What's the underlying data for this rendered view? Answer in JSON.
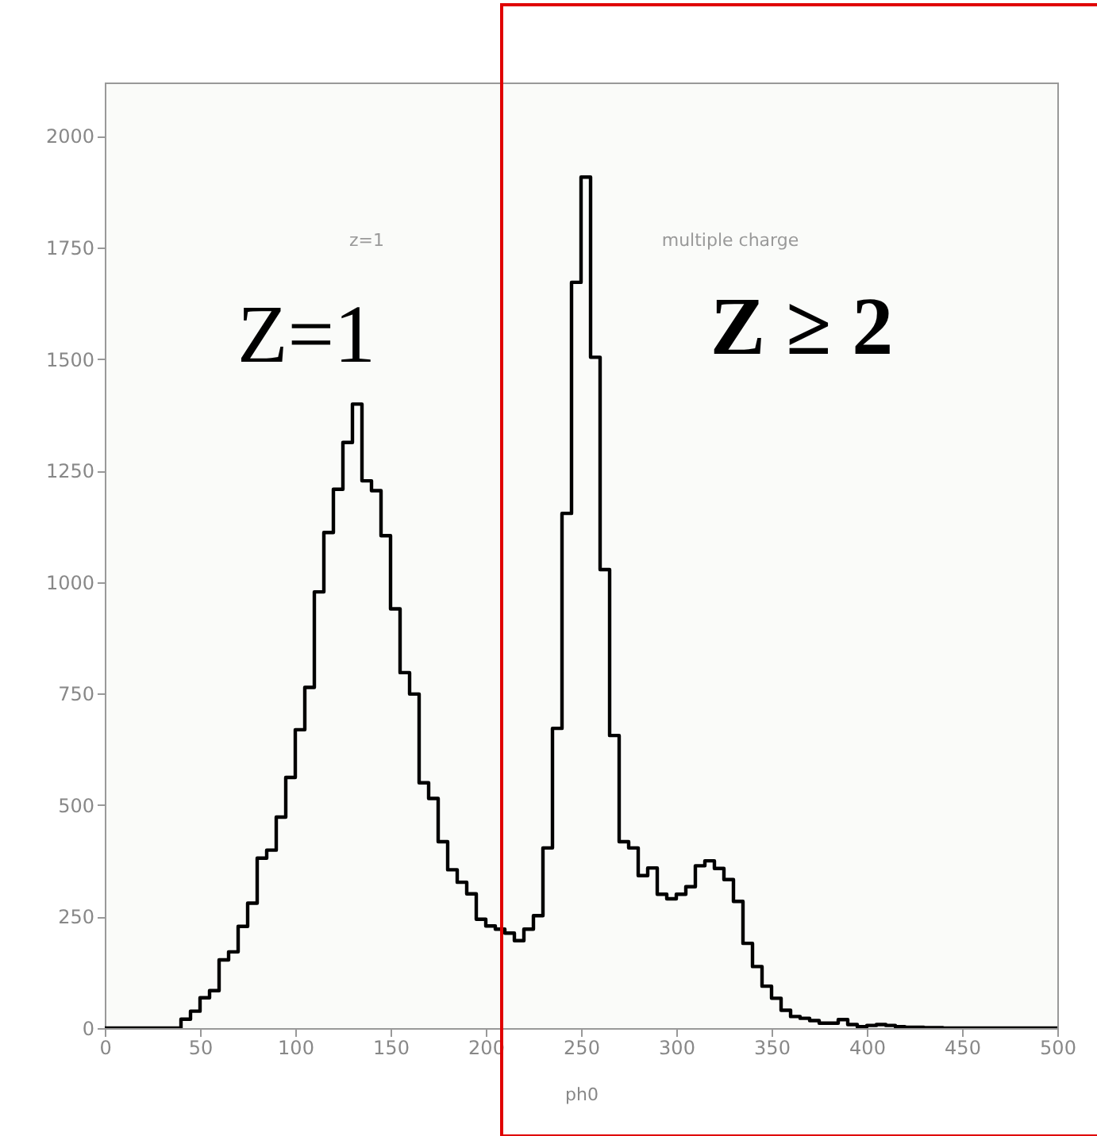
{
  "chart_data": {
    "type": "histogram",
    "xlabel": "ph0",
    "bins": [
      0,
      5,
      10,
      15,
      20,
      25,
      30,
      35,
      40,
      45,
      50,
      55,
      60,
      65,
      70,
      75,
      80,
      85,
      90,
      95,
      100,
      105,
      110,
      115,
      120,
      125,
      130,
      135,
      140,
      145,
      150,
      155,
      160,
      165,
      170,
      175,
      180,
      185,
      190,
      195,
      200,
      205,
      210,
      215,
      220,
      225,
      230,
      235,
      240,
      245,
      250,
      255,
      260,
      265,
      270,
      275,
      280,
      285,
      290,
      295,
      300,
      305,
      310,
      315,
      320,
      325,
      330,
      335,
      340,
      345,
      350,
      355,
      360,
      365,
      370,
      375,
      380,
      385,
      390,
      395,
      400,
      405,
      410,
      415,
      420,
      425,
      430,
      435,
      440,
      445,
      450,
      455,
      460,
      465,
      470,
      475,
      480,
      485,
      490,
      495,
      500
    ],
    "values": [
      0,
      0,
      0,
      0,
      0,
      0,
      0,
      0,
      20,
      38,
      68,
      84,
      153,
      171,
      228,
      280,
      381,
      399,
      473,
      562,
      669,
      764,
      978,
      1111,
      1208,
      1313,
      1399,
      1227,
      1205,
      1104,
      940,
      797,
      749,
      550,
      515,
      418,
      355,
      327,
      301,
      244,
      229,
      222,
      213,
      196,
      222,
      252,
      404,
      672,
      1154,
      1672,
      1908,
      1504,
      1028,
      656,
      418,
      404,
      342,
      359,
      300,
      290,
      300,
      317,
      364,
      375,
      358,
      333,
      284,
      190,
      138,
      94,
      67,
      40,
      26,
      22,
      17,
      11,
      11,
      19,
      8,
      3,
      6,
      8,
      6,
      3,
      2,
      2,
      1,
      1,
      0,
      0,
      0,
      0,
      0,
      0,
      0,
      0,
      0,
      0,
      0,
      0
    ],
    "color": "#000000",
    "xlim": [
      0,
      500
    ],
    "xticks": [
      0,
      50,
      100,
      150,
      200,
      250,
      300,
      350,
      400,
      450,
      500
    ],
    "ylim": [
      0,
      2120
    ],
    "yticks": [
      0,
      250,
      500,
      750,
      1000,
      1250,
      1500,
      1750,
      2000
    ],
    "grid": false,
    "annotations": [
      "z=1",
      "multiple charge",
      "Z=1",
      "Z ≥ 2"
    ]
  }
}
